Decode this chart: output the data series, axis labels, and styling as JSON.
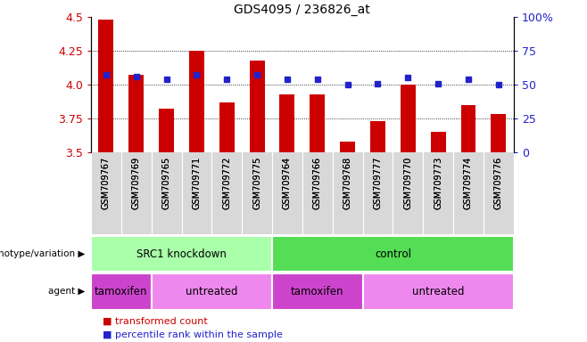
{
  "title": "GDS4095 / 236826_at",
  "samples": [
    "GSM709767",
    "GSM709769",
    "GSM709765",
    "GSM709771",
    "GSM709772",
    "GSM709775",
    "GSM709764",
    "GSM709766",
    "GSM709768",
    "GSM709777",
    "GSM709770",
    "GSM709773",
    "GSM709774",
    "GSM709776"
  ],
  "transformed_count": [
    4.48,
    4.07,
    3.82,
    4.25,
    3.87,
    4.18,
    3.93,
    3.93,
    3.58,
    3.73,
    4.0,
    3.65,
    3.85,
    3.78
  ],
  "percentile_rank": [
    57,
    56,
    54,
    57,
    54,
    57,
    54,
    54,
    50,
    51,
    55,
    51,
    54,
    50
  ],
  "ylim_left": [
    3.5,
    4.5
  ],
  "ylim_right": [
    0,
    100
  ],
  "yticks_left": [
    3.5,
    3.75,
    4.0,
    4.25,
    4.5
  ],
  "yticks_right": [
    0,
    25,
    50,
    75,
    100
  ],
  "bar_color": "#cc0000",
  "dot_color": "#2222cc",
  "grid_color": "#000000",
  "sample_bg": "#d8d8d8",
  "genotype_groups": [
    {
      "label": "SRC1 knockdown",
      "start": 0,
      "end": 6,
      "color": "#aaffaa"
    },
    {
      "label": "control",
      "start": 6,
      "end": 14,
      "color": "#55dd55"
    }
  ],
  "agent_groups": [
    {
      "label": "tamoxifen",
      "start": 0,
      "end": 2,
      "color": "#cc44cc"
    },
    {
      "label": "untreated",
      "start": 2,
      "end": 6,
      "color": "#ee88ee"
    },
    {
      "label": "tamoxifen",
      "start": 6,
      "end": 9,
      "color": "#cc44cc"
    },
    {
      "label": "untreated",
      "start": 9,
      "end": 14,
      "color": "#ee88ee"
    }
  ],
  "ylabel_left_color": "#cc0000",
  "ylabel_right_color": "#2222cc",
  "row_label_geno": "genotype/variation",
  "row_label_agent": "agent",
  "legend_tc": "transformed count",
  "legend_pr": "percentile rank within the sample"
}
